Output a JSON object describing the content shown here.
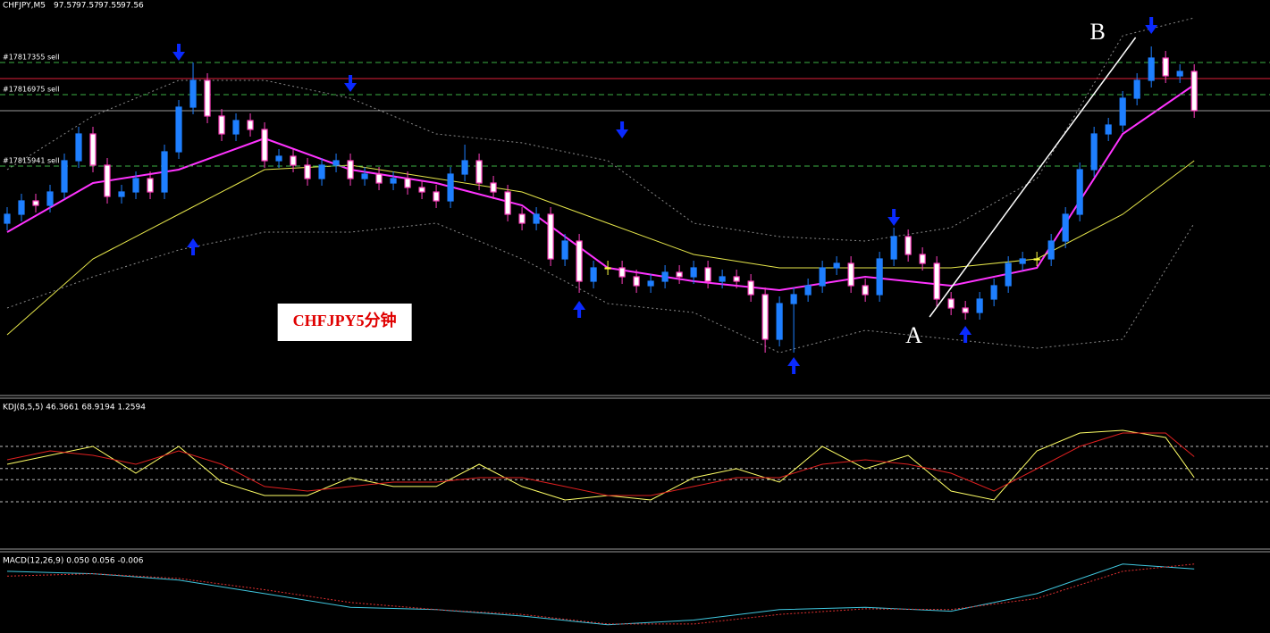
{
  "chart_data": [
    {
      "type": "candlestick",
      "symbol": "CHFJPY,M5",
      "quote": [
        97.57,
        97.57,
        97.55,
        97.56
      ],
      "open": [
        97.434,
        97.444,
        97.459,
        97.454,
        97.469,
        97.504,
        97.534,
        97.499,
        97.464,
        97.469,
        97.484,
        97.469,
        97.514,
        97.564,
        97.594,
        97.554,
        97.534,
        97.549,
        97.539,
        97.504,
        97.509,
        97.499,
        97.484,
        97.499,
        97.504,
        97.484,
        97.489,
        97.479,
        97.484,
        97.474,
        97.469,
        97.459,
        97.489,
        97.504,
        97.479,
        97.469,
        97.444,
        97.434,
        97.444,
        97.394,
        97.414,
        97.369,
        97.384,
        97.384,
        97.374,
        97.364,
        97.369,
        97.379,
        97.374,
        97.384,
        97.369,
        97.374,
        97.369,
        97.354,
        97.304,
        97.344,
        97.354,
        97.364,
        97.384,
        97.389,
        97.364,
        97.354,
        97.394,
        97.419,
        97.399,
        97.389,
        97.349,
        97.339,
        97.334,
        97.349,
        97.364,
        97.389,
        97.394,
        97.394,
        97.414,
        97.444,
        97.494,
        97.534,
        97.544,
        97.574,
        97.594,
        97.619,
        97.599,
        97.604
      ],
      "high": [
        97.452,
        97.467,
        97.467,
        97.477,
        97.512,
        97.542,
        97.542,
        97.507,
        97.477,
        97.492,
        97.492,
        97.522,
        97.572,
        97.614,
        97.602,
        97.562,
        97.557,
        97.557,
        97.547,
        97.517,
        97.517,
        97.507,
        97.507,
        97.512,
        97.512,
        97.497,
        97.497,
        97.492,
        97.492,
        97.482,
        97.477,
        97.497,
        97.522,
        97.512,
        97.487,
        97.477,
        97.452,
        97.452,
        97.452,
        97.422,
        97.422,
        97.392,
        97.392,
        97.392,
        97.382,
        97.377,
        97.387,
        97.387,
        97.392,
        97.392,
        97.382,
        97.382,
        97.377,
        97.362,
        97.352,
        97.362,
        97.372,
        97.392,
        97.397,
        97.397,
        97.372,
        97.402,
        97.429,
        97.427,
        97.407,
        97.397,
        97.357,
        97.347,
        97.357,
        97.372,
        97.397,
        97.402,
        97.402,
        97.422,
        97.452,
        97.502,
        97.542,
        97.552,
        97.582,
        97.602,
        97.632,
        97.627,
        97.612,
        97.612
      ],
      "low": [
        97.426,
        97.436,
        97.446,
        97.446,
        97.461,
        97.496,
        97.491,
        97.456,
        97.456,
        97.461,
        97.461,
        97.461,
        97.506,
        97.556,
        97.546,
        97.526,
        97.526,
        97.531,
        97.496,
        97.496,
        97.491,
        97.476,
        97.476,
        97.491,
        97.476,
        97.476,
        97.471,
        97.471,
        97.466,
        97.461,
        97.451,
        97.451,
        97.481,
        97.471,
        97.461,
        97.436,
        97.426,
        97.426,
        97.386,
        97.386,
        97.356,
        97.361,
        97.376,
        97.366,
        97.356,
        97.356,
        97.361,
        97.366,
        97.366,
        97.361,
        97.361,
        97.361,
        97.346,
        97.289,
        97.296,
        97.289,
        97.346,
        97.356,
        97.376,
        97.356,
        97.346,
        97.346,
        97.386,
        97.391,
        97.381,
        97.341,
        97.331,
        97.326,
        97.326,
        97.341,
        97.356,
        97.381,
        97.386,
        97.386,
        97.406,
        97.436,
        97.486,
        97.526,
        97.536,
        97.566,
        97.586,
        97.591,
        97.591,
        97.552
      ],
      "close": [
        97.444,
        97.459,
        97.454,
        97.469,
        97.504,
        97.534,
        97.499,
        97.464,
        97.469,
        97.484,
        97.469,
        97.514,
        97.564,
        97.594,
        97.554,
        97.534,
        97.549,
        97.539,
        97.504,
        97.509,
        97.499,
        97.484,
        97.499,
        97.504,
        97.484,
        97.489,
        97.479,
        97.484,
        97.474,
        97.469,
        97.459,
        97.489,
        97.504,
        97.479,
        97.469,
        97.444,
        97.434,
        97.444,
        97.394,
        97.414,
        97.369,
        97.384,
        97.384,
        97.374,
        97.364,
        97.369,
        97.379,
        97.374,
        97.384,
        97.369,
        97.374,
        97.369,
        97.354,
        97.304,
        97.344,
        97.354,
        97.364,
        97.384,
        97.389,
        97.364,
        97.354,
        97.394,
        97.419,
        97.399,
        97.389,
        97.349,
        97.339,
        97.334,
        97.349,
        97.364,
        97.389,
        97.394,
        97.394,
        97.414,
        97.444,
        97.494,
        97.534,
        97.544,
        97.574,
        97.594,
        97.619,
        97.599,
        97.604,
        97.56
      ],
      "up_color": "#1e7fff",
      "down_color": "#ffffff",
      "down_edge": "#ff3fbf",
      "doji_color": "#ffff40",
      "xlim": [
        -0.5,
        88.3
      ],
      "ylim": [
        97.244,
        97.684
      ],
      "overlays": [
        {
          "color": "#ff33ff",
          "width": 2,
          "dash": false,
          "x": [
            0,
            6,
            12,
            18,
            24,
            30,
            36,
            42,
            48,
            54,
            60,
            66,
            72,
            78,
            83
          ],
          "values": [
            97.424,
            97.479,
            97.494,
            97.529,
            97.494,
            97.479,
            97.454,
            97.384,
            97.369,
            97.359,
            97.374,
            97.364,
            97.384,
            97.534,
            97.589
          ]
        },
        {
          "color": "#e6e64a",
          "width": 1,
          "dash": false,
          "x": [
            0,
            6,
            12,
            18,
            24,
            30,
            36,
            42,
            48,
            54,
            60,
            66,
            72,
            78,
            83
          ],
          "values": [
            97.309,
            97.394,
            97.444,
            97.494,
            97.499,
            97.484,
            97.469,
            97.434,
            97.399,
            97.384,
            97.384,
            97.384,
            97.394,
            97.444,
            97.504
          ]
        },
        {
          "color": "#8a8a8a",
          "width": 1,
          "dash": true,
          "x": [
            0,
            6,
            12,
            18,
            24,
            30,
            36,
            42,
            48,
            54,
            60,
            66,
            72,
            78,
            83
          ],
          "values": [
            97.494,
            97.554,
            97.594,
            97.594,
            97.574,
            97.534,
            97.524,
            97.504,
            97.434,
            97.419,
            97.414,
            97.429,
            97.484,
            97.644,
            97.664
          ]
        },
        {
          "color": "#8a8a8a",
          "width": 1,
          "dash": true,
          "x": [
            0,
            6,
            12,
            18,
            24,
            30,
            36,
            42,
            48,
            54,
            60,
            66,
            72,
            78,
            83
          ],
          "values": [
            97.339,
            97.374,
            97.404,
            97.424,
            97.424,
            97.434,
            97.394,
            97.344,
            97.334,
            97.289,
            97.314,
            97.304,
            97.294,
            97.304,
            97.434
          ]
        }
      ],
      "order_color": "#3cb043",
      "orders": [
        {
          "label": "#17817355 sell",
          "price": 97.614
        },
        {
          "label": "#17816975 sell",
          "price": 97.578
        },
        {
          "label": "#17815941 sell",
          "price": 97.498
        }
      ],
      "levels": [
        {
          "price": 97.596,
          "color": "#e0203a"
        },
        {
          "price": 97.56,
          "color": "#9a9a9a"
        }
      ],
      "signal_color": "#0a2aff",
      "signals": [
        {
          "index": 12,
          "direction": "down",
          "price": 97.624
        },
        {
          "index": 24,
          "direction": "down",
          "price": 97.589
        },
        {
          "index": 43,
          "direction": "down",
          "price": 97.537
        },
        {
          "index": 62,
          "direction": "down",
          "price": 97.439
        },
        {
          "index": 80,
          "direction": "down",
          "price": 97.654
        },
        {
          "index": 13,
          "direction": "up",
          "price": 97.409
        },
        {
          "index": 40,
          "direction": "up",
          "price": 97.339
        },
        {
          "index": 55,
          "direction": "up",
          "price": 97.276
        },
        {
          "index": 67,
          "direction": "up",
          "price": 97.311
        }
      ],
      "trendline": {
        "x": [
          64.5,
          78.9
        ],
        "values": [
          97.329,
          97.642
        ],
        "color": "#ffffff"
      },
      "annotations": [
        {
          "text": "A",
          "index": 63.4,
          "price": 97.306
        },
        {
          "text": "B",
          "index": 76.25,
          "price": 97.646
        }
      ],
      "label": {
        "text": "CHFJPY5分钟",
        "index": 23.6,
        "price": 97.323
      }
    },
    {
      "type": "line",
      "label": "KDJ(8,5,5) 46.3661 68.9194 1.2594",
      "x": [
        0,
        3,
        6,
        9,
        12,
        15,
        18,
        21,
        24,
        27,
        30,
        33,
        36,
        39,
        42,
        45,
        48,
        51,
        54,
        57,
        60,
        63,
        66,
        69,
        72,
        75,
        78,
        81,
        83
      ],
      "series": [
        {
          "color": "#ffff66",
          "dash": false,
          "values": [
            60.6,
            70.3,
            80,
            51,
            80,
            41.3,
            26.8,
            26.8,
            46.1,
            36.5,
            36.5,
            60.6,
            36.5,
            21.9,
            26.8,
            21.9,
            46.1,
            55.8,
            41.3,
            80,
            55.8,
            70.3,
            31.6,
            21.9,
            75.2,
            94.5,
            97.4,
            89.7,
            46.37
          ]
        },
        {
          "color": "#e02020",
          "dash": false,
          "values": [
            65.5,
            75.2,
            70.3,
            60.6,
            75.2,
            60.6,
            36.5,
            31.6,
            36.5,
            41.3,
            41.3,
            46.1,
            46.1,
            36.5,
            26.8,
            26.8,
            36.5,
            46.1,
            46.1,
            60.6,
            65.5,
            60.6,
            51,
            31.6,
            55.8,
            80,
            94.5,
            94.5,
            68.92
          ]
        }
      ],
      "levels": [
        80,
        56,
        44,
        20
      ],
      "xlim": [
        -0.5,
        88.3
      ],
      "ylim": [
        -28.4,
        128.4
      ]
    },
    {
      "type": "line",
      "label": "MACD(12,26,9) 0.050 0.056 -0.006",
      "x": [
        0,
        6,
        12,
        18,
        24,
        30,
        36,
        42,
        48,
        54,
        60,
        66,
        72,
        78,
        83
      ],
      "series": [
        {
          "color": "#40c8e0",
          "dash": false,
          "values": [
            0.047,
            0.044,
            0.036,
            0.019,
            0.002,
            -0.001,
            -0.009,
            -0.02,
            -0.014,
            -0.001,
            0.002,
            -0.003,
            0.019,
            0.056,
            0.05
          ]
        },
        {
          "color": "#e03030",
          "dash": true,
          "values": [
            0.041,
            0.044,
            0.038,
            0.024,
            0.008,
            -0.001,
            -0.007,
            -0.019,
            -0.019,
            -0.007,
            0,
            -0.001,
            0.013,
            0.047,
            0.056
          ]
        }
      ],
      "levels": [],
      "xlim": [
        -0.5,
        88.3
      ],
      "ylim": [
        -0.028,
        0.067
      ]
    }
  ]
}
